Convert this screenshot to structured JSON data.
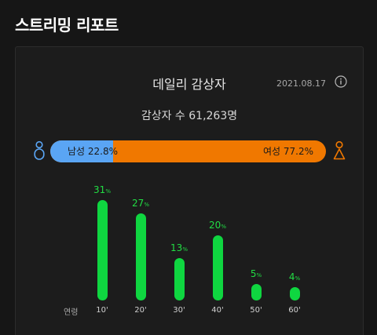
{
  "page": {
    "title": "스트리밍 리포트"
  },
  "card": {
    "title": "데일리 감상자",
    "date": "2021.08.17",
    "viewer_count": "감상자 수 61,263명"
  },
  "gender": {
    "male_label": "남성 22.8%",
    "female_label": "여성 77.2%",
    "male_fraction": 0.228,
    "female_fraction": 0.772,
    "male_color": "#5aa5f4",
    "female_color": "#f07800"
  },
  "icons": {
    "info": "info-icon",
    "male": "male-person-icon",
    "female": "female-person-icon"
  },
  "chart_data": {
    "type": "bar",
    "axis_title": "연령",
    "categories": [
      "10'",
      "20'",
      "30'",
      "40'",
      "50'",
      "60'"
    ],
    "values": [
      31,
      27,
      13,
      20,
      5,
      4
    ],
    "value_unit": "%",
    "ylim": [
      0,
      31
    ],
    "bar_color": "#0fd640",
    "label_color": "#22dd44",
    "grid": false
  }
}
